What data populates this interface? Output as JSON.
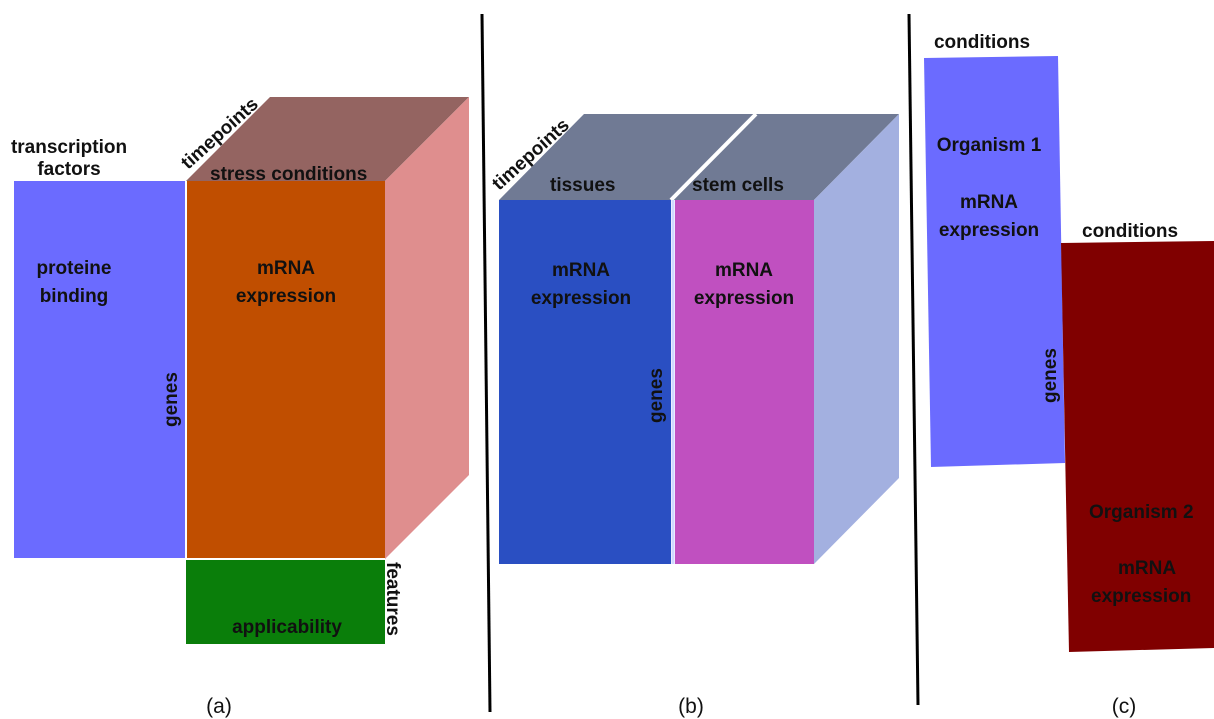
{
  "panels": {
    "a": {
      "caption": "(a)",
      "transcription_factors": [
        "transcription",
        "factors"
      ],
      "timepoints": "timepoints",
      "stress_conditions": "stress conditions",
      "proteine_binding": [
        "proteine",
        "binding"
      ],
      "genes": "genes",
      "mrna_expression": [
        "mRNA",
        "expression"
      ],
      "applicability": "applicability",
      "features": "features"
    },
    "b": {
      "caption": "(b)",
      "timepoints": "timepoints",
      "tissues": "tissues",
      "stem_cells": "stem cells",
      "genes": "genes",
      "tissues_mrna": [
        "mRNA",
        "expression"
      ],
      "stem_cells_mrna": [
        "mRNA",
        "expression"
      ]
    },
    "c": {
      "caption": "(c)",
      "conditions_1": "conditions",
      "conditions_2": "conditions",
      "organism1": "Organism 1",
      "organism1_mrna": [
        "mRNA",
        "expression"
      ],
      "genes": "genes",
      "organism2": "Organism 2",
      "organism2_mrna": [
        "mRNA",
        "expression"
      ]
    }
  },
  "colors": {
    "protein_binding_block": "#6b6bff",
    "mrna_stress_front": "#c04e00",
    "stress_top": "#946461",
    "stress_side": "#df8e8e",
    "applicability_block": "#0a7e0a",
    "tissues_front": "#2a4fc2",
    "stem_cells_front": "#c050c0",
    "panel_b_top": "#707a94",
    "panel_b_side": "#a3b0e0",
    "organism1_block": "#6b6bff",
    "organism2_block": "#800000"
  }
}
